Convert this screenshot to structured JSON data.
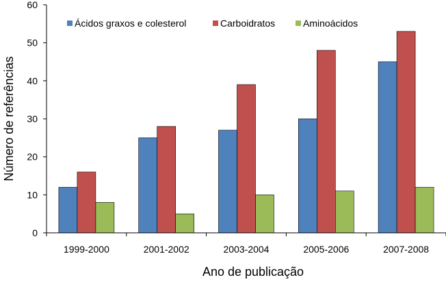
{
  "chart_data": {
    "type": "bar",
    "xlabel": "Ano de publicação",
    "ylabel": "Número de referências",
    "ylim": [
      0,
      60
    ],
    "yticks": [
      0,
      10,
      20,
      30,
      40,
      50,
      60
    ],
    "categories": [
      "1999-2000",
      "2001-2002",
      "2003-2004",
      "2005-2006",
      "2007-2008"
    ],
    "series": [
      {
        "name": "Ácidos graxos e colesterol",
        "color": "#4F81BD",
        "values": [
          12,
          25,
          27,
          30,
          45
        ]
      },
      {
        "name": "Carboidratos",
        "color": "#C0504D",
        "values": [
          16,
          28,
          39,
          48,
          53
        ]
      },
      {
        "name": "Aminoácidos",
        "color": "#9BBB59",
        "values": [
          8,
          5,
          10,
          11,
          12
        ]
      }
    ],
    "grid": false,
    "legend_position": "top-left"
  }
}
